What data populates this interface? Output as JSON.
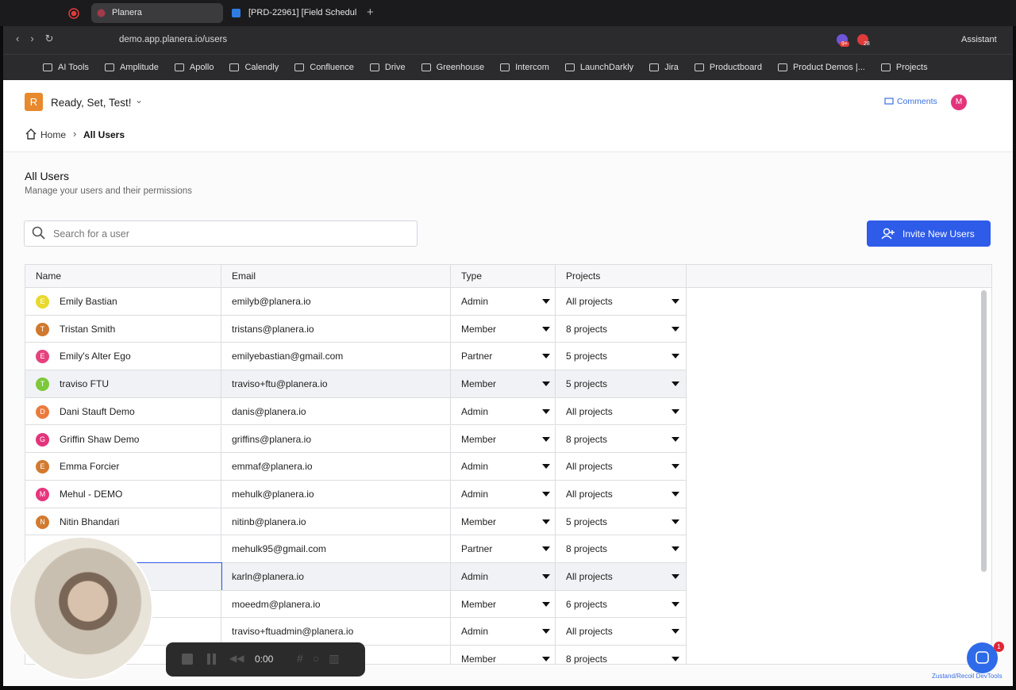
{
  "browser": {
    "tabs": [
      "Planera",
      "[PRD-22961] [Field Schedul"
    ],
    "url": "demo.app.planera.io/users",
    "badges": [
      "9+",
      "28"
    ],
    "assistant": "Assistant",
    "bookmarks": [
      "AI Tools",
      "Amplitude",
      "Apollo",
      "Calendly",
      "Confluence",
      "Drive",
      "Greenhouse",
      "Intercom",
      "LaunchDarkly",
      "Jira",
      "Productboard",
      "Product Demos |...",
      "Projects"
    ]
  },
  "header": {
    "workspace_initial": "R",
    "workspace": "Ready, Set, Test!",
    "comments": "Comments",
    "user_initial": "M"
  },
  "breadcrumb": [
    "Home",
    "All Users"
  ],
  "page": {
    "title": "All Users",
    "subtitle": "Manage your users and their permissions",
    "search_placeholder": "Search for a user",
    "invite_button": "Invite New Users"
  },
  "table": {
    "columns": [
      "Name",
      "Email",
      "Type",
      "Projects"
    ],
    "rows": [
      {
        "initial": "E",
        "color": "#e8d92c",
        "name": "Emily Bastian",
        "email": "emilyb@planera.io",
        "type": "Admin",
        "projects": "All projects"
      },
      {
        "initial": "T",
        "color": "#d0782d",
        "name": "Tristan Smith",
        "email": "tristans@planera.io",
        "type": "Member",
        "projects": "8 projects"
      },
      {
        "initial": "E",
        "color": "#e6417f",
        "name": "Emily's Alter Ego",
        "email": "emilyebastian@gmail.com",
        "type": "Partner",
        "projects": "5 projects"
      },
      {
        "initial": "T",
        "color": "#7cc93b",
        "name": "traviso FTU",
        "email": "traviso+ftu@planera.io",
        "type": "Member",
        "projects": "5 projects"
      },
      {
        "initial": "D",
        "color": "#ec7a3c",
        "name": "Dani Stauft Demo",
        "email": "danis@planera.io",
        "type": "Admin",
        "projects": "All projects"
      },
      {
        "initial": "G",
        "color": "#e3347b",
        "name": "Griffin Shaw Demo",
        "email": "griffins@planera.io",
        "type": "Member",
        "projects": "8 projects"
      },
      {
        "initial": "E",
        "color": "#d27a30",
        "name": "Emma Forcier",
        "email": "emmaf@planera.io",
        "type": "Admin",
        "projects": "All projects"
      },
      {
        "initial": "M",
        "color": "#e6357e",
        "name": "Mehul - DEMO",
        "email": "mehulk@planera.io",
        "type": "Admin",
        "projects": "All projects"
      },
      {
        "initial": "N",
        "color": "#d27a30",
        "name": "Nitin Bhandari",
        "email": "nitinb@planera.io",
        "type": "Member",
        "projects": "5 projects"
      },
      {
        "email": "mehulk95@gmail.com",
        "type": "Partner",
        "projects": "8 projects"
      },
      {
        "email": "karln@planera.io",
        "type": "Admin",
        "projects": "All projects"
      },
      {
        "email": "moeedm@planera.io",
        "type": "Member",
        "projects": "6 projects"
      },
      {
        "email": "traviso+ftuadmin@planera.io",
        "type": "Admin",
        "projects": "All projects"
      },
      {
        "email": "",
        "type": "Member",
        "projects": "8 projects"
      }
    ]
  },
  "recorder": {
    "time": "0:00"
  },
  "chat_badge": "1",
  "devtools": "Zustand/Recoil DevTools"
}
